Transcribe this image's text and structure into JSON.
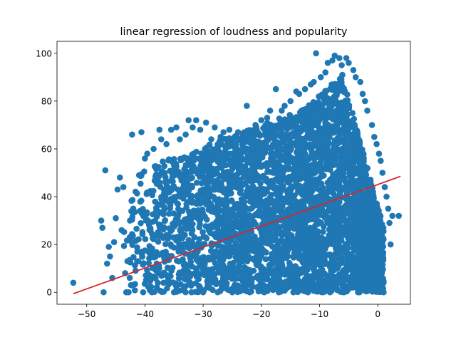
{
  "chart_data": {
    "type": "scatter",
    "title": "linear regression of loudness and popularity",
    "xlabel": "",
    "ylabel": "",
    "xlim": [
      -55.1,
      5.6
    ],
    "ylim": [
      -5,
      105
    ],
    "xticks": [
      -50,
      -40,
      -30,
      -20,
      -10,
      0
    ],
    "xtick_labels": [
      "−50",
      "−40",
      "−30",
      "−20",
      "−10",
      "0"
    ],
    "yticks": [
      0,
      20,
      40,
      60,
      80,
      100
    ],
    "ytick_labels": [
      "0",
      "20",
      "40",
      "60",
      "80",
      "100"
    ],
    "grid": false,
    "legend": "none",
    "point_color": "#1f77b4",
    "line_color": "#d62728",
    "series": [
      {
        "type": "scatter",
        "points": [
          [
            -52.3,
            4
          ],
          [
            -47.5,
            30
          ],
          [
            -47.3,
            27
          ],
          [
            -47.1,
            0
          ],
          [
            -46.8,
            51
          ],
          [
            -46.5,
            12
          ],
          [
            -46.2,
            19
          ],
          [
            -46,
            15
          ],
          [
            -45.6,
            6
          ],
          [
            -45.3,
            21
          ],
          [
            -45,
            31
          ],
          [
            -44.7,
            43
          ],
          [
            -44.3,
            48
          ],
          [
            -44,
            26
          ],
          [
            -43.7,
            44
          ],
          [
            -43.4,
            8
          ],
          [
            -43.2,
            0
          ],
          [
            -43,
            13
          ],
          [
            -42.8,
            0
          ],
          [
            -42.6,
            23
          ],
          [
            -42.4,
            3
          ],
          [
            -42.2,
            66
          ],
          [
            -42,
            35
          ],
          [
            -41.6,
            9
          ],
          [
            -41.3,
            17
          ],
          [
            -41,
            49
          ],
          [
            -40.6,
            67
          ],
          [
            -40.3,
            0
          ],
          [
            -40,
            56
          ],
          [
            -39.6,
            58
          ],
          [
            -39.2,
            42
          ],
          [
            -38.8,
            0
          ],
          [
            -38.5,
            60
          ],
          [
            -38,
            33
          ],
          [
            -37.5,
            68
          ],
          [
            -37.2,
            64
          ],
          [
            -36.8,
            4
          ],
          [
            -36.3,
            62
          ],
          [
            -36,
            7
          ],
          [
            -35.5,
            68
          ],
          [
            -35,
            0
          ],
          [
            -34.6,
            69
          ],
          [
            -34,
            64
          ],
          [
            -33.5,
            1
          ],
          [
            -33,
            66
          ],
          [
            -32.5,
            72
          ],
          [
            -32,
            0
          ],
          [
            -31.8,
            69
          ],
          [
            -31.2,
            72
          ],
          [
            -30.5,
            68
          ],
          [
            -30,
            0
          ],
          [
            -29.5,
            71
          ],
          [
            -29,
            2
          ],
          [
            -28.6,
            64
          ],
          [
            -28,
            69
          ],
          [
            -27.5,
            0
          ],
          [
            -27,
            65
          ],
          [
            -26.5,
            67
          ],
          [
            -26,
            3
          ],
          [
            -25.5,
            68
          ],
          [
            -25,
            0
          ],
          [
            -24.5,
            63
          ],
          [
            -24,
            67
          ],
          [
            -23.6,
            1
          ],
          [
            -23,
            66
          ],
          [
            -22.5,
            78
          ],
          [
            -22,
            0
          ],
          [
            -21.5,
            66
          ],
          [
            -21,
            70
          ],
          [
            -20.5,
            2
          ],
          [
            -20,
            72
          ],
          [
            -19.5,
            0
          ],
          [
            -19,
            73
          ],
          [
            -18.5,
            76
          ],
          [
            -18,
            1
          ],
          [
            -17.5,
            85
          ],
          [
            -17,
            0
          ],
          [
            -16.5,
            76
          ],
          [
            -16,
            78
          ],
          [
            -15.5,
            2
          ],
          [
            -15,
            80
          ],
          [
            -14.5,
            0
          ],
          [
            -14,
            84
          ],
          [
            -13.5,
            83
          ],
          [
            -13,
            1
          ],
          [
            -12.5,
            85
          ],
          [
            -12,
            0
          ],
          [
            -11.5,
            87
          ],
          [
            -11,
            88
          ],
          [
            -10.6,
            100
          ],
          [
            -10.2,
            1
          ],
          [
            -9.8,
            90
          ],
          [
            -9.4,
            0
          ],
          [
            -9,
            92
          ],
          [
            -8.6,
            96
          ],
          [
            -8.2,
            0
          ],
          [
            -7.8,
            97
          ],
          [
            -7.4,
            99
          ],
          [
            -7,
            1
          ],
          [
            -6.6,
            98
          ],
          [
            -6.2,
            95
          ],
          [
            -5.8,
            0
          ],
          [
            -5.4,
            98
          ],
          [
            -5,
            96
          ],
          [
            -4.6,
            2
          ],
          [
            -4.2,
            93
          ],
          [
            -3.8,
            90
          ],
          [
            -3.4,
            0
          ],
          [
            -3,
            88
          ],
          [
            -2.6,
            83
          ],
          [
            -2.2,
            80
          ],
          [
            -1.8,
            76
          ],
          [
            -1.4,
            1
          ],
          [
            -1,
            70
          ],
          [
            -0.6,
            65
          ],
          [
            -0.2,
            62
          ],
          [
            0.2,
            58
          ],
          [
            0.5,
            55
          ],
          [
            0.8,
            50
          ],
          [
            1,
            0
          ],
          [
            1.2,
            44
          ],
          [
            1.5,
            40
          ],
          [
            1.8,
            35
          ],
          [
            2,
            29
          ],
          [
            2.2,
            20
          ],
          [
            2.5,
            32
          ],
          [
            3.6,
            32
          ]
        ]
      },
      {
        "type": "line",
        "name": "",
        "x": [
          -52.3,
          3.9
        ],
        "y": [
          -0.6,
          48.5
        ]
      }
    ]
  }
}
